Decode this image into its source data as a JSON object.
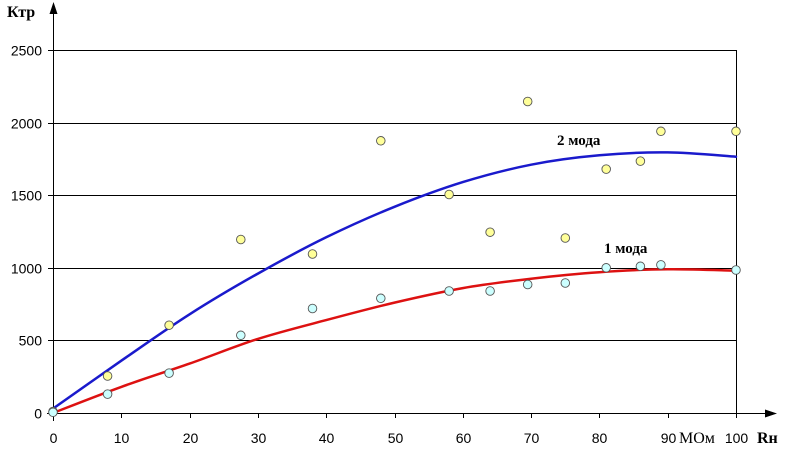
{
  "chart_data": {
    "type": "scatter",
    "ylabel": "Ктр",
    "xlabel": "Rн",
    "x_unit": "МОм",
    "xlim": [
      0,
      100
    ],
    "ylim": [
      0,
      2500
    ],
    "xticks": [
      0,
      10,
      20,
      30,
      40,
      50,
      60,
      70,
      80,
      90,
      100
    ],
    "yticks": [
      0,
      500,
      1000,
      1500,
      2000,
      2500
    ],
    "grid": "horizontal",
    "series": [
      {
        "name": "2 мода",
        "marker_color": "#ffff99",
        "curve_color": "#1a1acc",
        "points": [
          {
            "x": 0,
            "y": 10
          },
          {
            "x": 8,
            "y": 255
          },
          {
            "x": 17,
            "y": 605
          },
          {
            "x": 27.5,
            "y": 1195
          },
          {
            "x": 38,
            "y": 1095
          },
          {
            "x": 48,
            "y": 1875
          },
          {
            "x": 58,
            "y": 1505
          },
          {
            "x": 64,
            "y": 1245
          },
          {
            "x": 69.5,
            "y": 2145
          },
          {
            "x": 75,
            "y": 1205
          },
          {
            "x": 81,
            "y": 1680
          },
          {
            "x": 86,
            "y": 1735
          },
          {
            "x": 89,
            "y": 1940
          },
          {
            "x": 100,
            "y": 1940
          }
        ],
        "curve": [
          {
            "x": 0,
            "y": 30
          },
          {
            "x": 10,
            "y": 360
          },
          {
            "x": 20,
            "y": 680
          },
          {
            "x": 30,
            "y": 960
          },
          {
            "x": 40,
            "y": 1210
          },
          {
            "x": 50,
            "y": 1420
          },
          {
            "x": 60,
            "y": 1590
          },
          {
            "x": 70,
            "y": 1710
          },
          {
            "x": 80,
            "y": 1775
          },
          {
            "x": 90,
            "y": 1795
          },
          {
            "x": 100,
            "y": 1765
          }
        ]
      },
      {
        "name": "1 мода",
        "marker_color": "#ccffff",
        "curve_color": "#dd1111",
        "points": [
          {
            "x": 0,
            "y": 5
          },
          {
            "x": 8,
            "y": 130
          },
          {
            "x": 17,
            "y": 275
          },
          {
            "x": 27.5,
            "y": 535
          },
          {
            "x": 38,
            "y": 720
          },
          {
            "x": 48,
            "y": 790
          },
          {
            "x": 58,
            "y": 840
          },
          {
            "x": 64,
            "y": 840
          },
          {
            "x": 69.5,
            "y": 885
          },
          {
            "x": 75,
            "y": 895
          },
          {
            "x": 81,
            "y": 1000
          },
          {
            "x": 86,
            "y": 1010
          },
          {
            "x": 89,
            "y": 1020
          },
          {
            "x": 100,
            "y": 985
          }
        ],
        "curve": [
          {
            "x": 0,
            "y": 0
          },
          {
            "x": 10,
            "y": 180
          },
          {
            "x": 20,
            "y": 340
          },
          {
            "x": 30,
            "y": 510
          },
          {
            "x": 40,
            "y": 640
          },
          {
            "x": 50,
            "y": 760
          },
          {
            "x": 60,
            "y": 860
          },
          {
            "x": 70,
            "y": 925
          },
          {
            "x": 80,
            "y": 970
          },
          {
            "x": 90,
            "y": 990
          },
          {
            "x": 100,
            "y": 980
          }
        ]
      }
    ]
  }
}
